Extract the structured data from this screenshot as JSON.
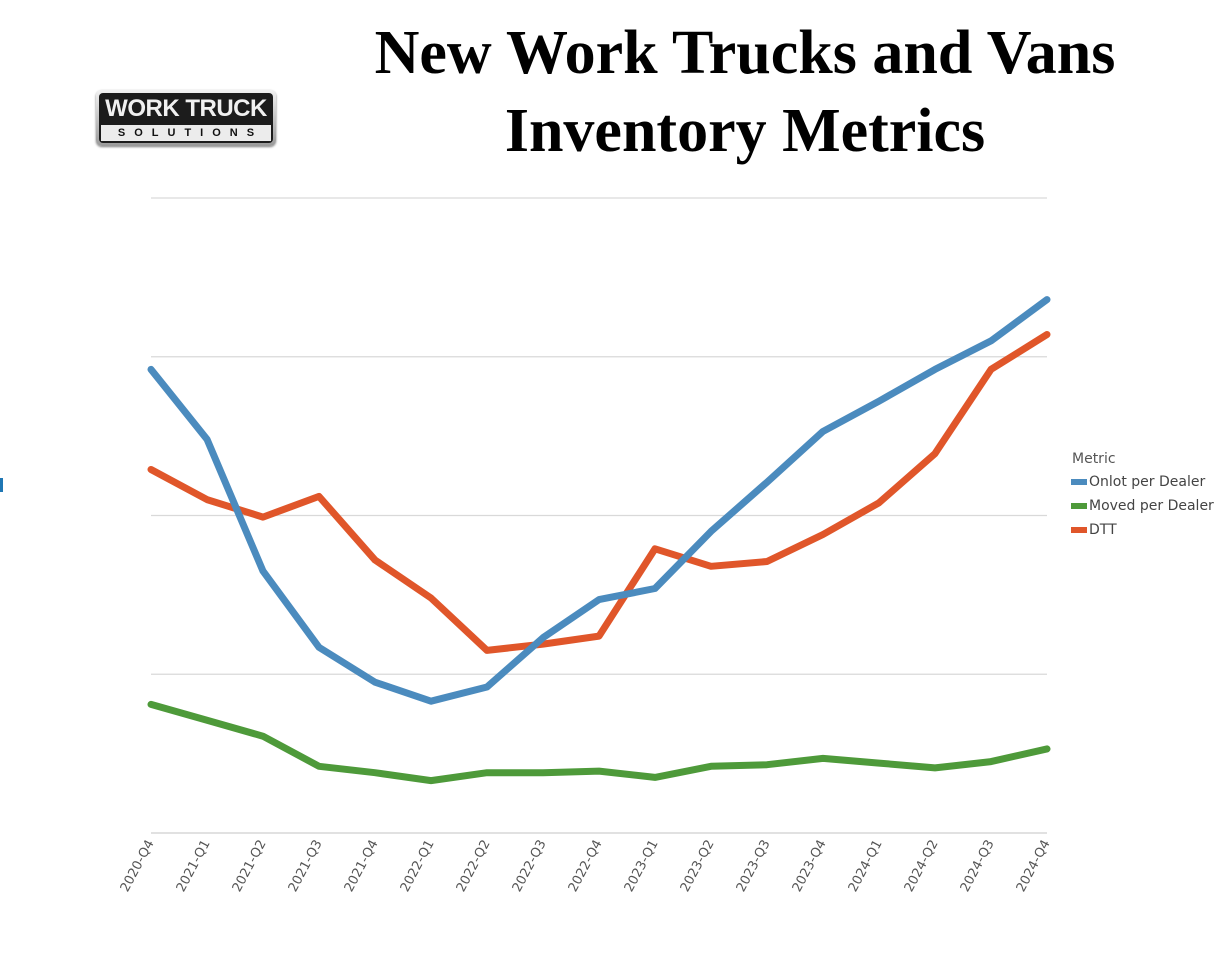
{
  "header": {
    "title_line1": "New Work Trucks and Vans",
    "title_line2": "Inventory Metrics"
  },
  "logo": {
    "top_text": "WORK TRUCK",
    "bottom_text": "SOLUTIONS"
  },
  "chart_data": {
    "type": "line",
    "title": "New Work Trucks and Vans Inventory Metrics",
    "xlabel": "",
    "ylabel": "",
    "ylim": [
      0,
      4
    ],
    "y_ticks_shown": false,
    "grid": true,
    "legend_position": "right",
    "legend_title": "Metric",
    "categories": [
      "2020-Q4",
      "2021-Q1",
      "2021-Q2",
      "2021-Q3",
      "2021-Q4",
      "2022-Q1",
      "2022-Q2",
      "2022-Q3",
      "2022-Q4",
      "2023-Q1",
      "2023-Q2",
      "2023-Q3",
      "2023-Q4",
      "2024-Q1",
      "2024-Q2",
      "2024-Q3",
      "2024-Q4"
    ],
    "series": [
      {
        "name": "Onlot per Dealer",
        "color": "#4b8bbe",
        "values": [
          2.92,
          2.48,
          1.65,
          1.17,
          0.95,
          0.83,
          0.92,
          1.23,
          1.47,
          1.54,
          1.9,
          2.21,
          2.53,
          2.72,
          2.92,
          3.1,
          3.36
        ]
      },
      {
        "name": "Moved per Dealer",
        "color": "#4e9a3a",
        "values": [
          0.81,
          0.71,
          0.61,
          0.42,
          0.38,
          0.33,
          0.38,
          0.38,
          0.39,
          0.35,
          0.42,
          0.43,
          0.47,
          0.44,
          0.41,
          0.45,
          0.53
        ]
      },
      {
        "name": "DTT",
        "color": "#e0562a",
        "values": [
          2.29,
          2.1,
          1.99,
          2.12,
          1.72,
          1.48,
          1.15,
          1.19,
          1.24,
          1.79,
          1.68,
          1.71,
          1.88,
          2.08,
          2.39,
          2.92,
          3.14
        ]
      }
    ]
  }
}
